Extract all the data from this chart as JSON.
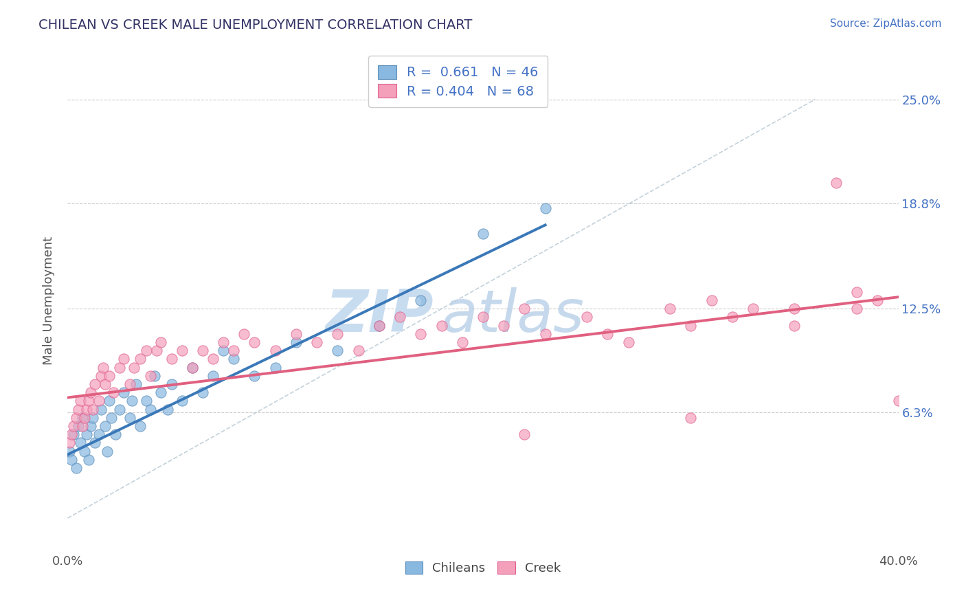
{
  "title": "CHILEAN VS CREEK MALE UNEMPLOYMENT CORRELATION CHART",
  "source_text": "Source: ZipAtlas.com",
  "ylabel": "Male Unemployment",
  "xlim": [
    0.0,
    0.4
  ],
  "ylim": [
    -0.02,
    0.28
  ],
  "yticks": [
    0.063,
    0.125,
    0.188,
    0.25
  ],
  "ytick_labels": [
    "6.3%",
    "12.5%",
    "18.8%",
    "25.0%"
  ],
  "xticks": [
    0.0,
    0.4
  ],
  "xtick_labels": [
    "0.0%",
    "40.0%"
  ],
  "blue_color": "#89B8E0",
  "pink_color": "#F4A0BB",
  "blue_edge_color": "#5B8DB8",
  "pink_edge_color": "#E06090",
  "blue_scatter": {
    "x": [
      0.001,
      0.002,
      0.003,
      0.004,
      0.005,
      0.006,
      0.007,
      0.008,
      0.009,
      0.01,
      0.011,
      0.012,
      0.013,
      0.015,
      0.016,
      0.018,
      0.019,
      0.02,
      0.021,
      0.023,
      0.025,
      0.027,
      0.03,
      0.031,
      0.033,
      0.035,
      0.038,
      0.04,
      0.042,
      0.045,
      0.048,
      0.05,
      0.055,
      0.06,
      0.065,
      0.07,
      0.075,
      0.08,
      0.09,
      0.1,
      0.11,
      0.13,
      0.15,
      0.17,
      0.2,
      0.23
    ],
    "y": [
      0.04,
      0.035,
      0.05,
      0.03,
      0.055,
      0.045,
      0.06,
      0.04,
      0.05,
      0.035,
      0.055,
      0.06,
      0.045,
      0.05,
      0.065,
      0.055,
      0.04,
      0.07,
      0.06,
      0.05,
      0.065,
      0.075,
      0.06,
      0.07,
      0.08,
      0.055,
      0.07,
      0.065,
      0.085,
      0.075,
      0.065,
      0.08,
      0.07,
      0.09,
      0.075,
      0.085,
      0.1,
      0.095,
      0.085,
      0.09,
      0.105,
      0.1,
      0.115,
      0.13,
      0.17,
      0.185
    ]
  },
  "pink_scatter": {
    "x": [
      0.001,
      0.002,
      0.003,
      0.004,
      0.005,
      0.006,
      0.007,
      0.008,
      0.009,
      0.01,
      0.011,
      0.012,
      0.013,
      0.015,
      0.016,
      0.017,
      0.018,
      0.02,
      0.022,
      0.025,
      0.027,
      0.03,
      0.032,
      0.035,
      0.038,
      0.04,
      0.043,
      0.045,
      0.05,
      0.055,
      0.06,
      0.065,
      0.07,
      0.075,
      0.08,
      0.085,
      0.09,
      0.1,
      0.11,
      0.12,
      0.13,
      0.14,
      0.15,
      0.16,
      0.17,
      0.18,
      0.19,
      0.2,
      0.21,
      0.22,
      0.23,
      0.25,
      0.27,
      0.29,
      0.3,
      0.31,
      0.32,
      0.33,
      0.35,
      0.37,
      0.38,
      0.39,
      0.4,
      0.35,
      0.3,
      0.26,
      0.22,
      0.38
    ],
    "y": [
      0.045,
      0.05,
      0.055,
      0.06,
      0.065,
      0.07,
      0.055,
      0.06,
      0.065,
      0.07,
      0.075,
      0.065,
      0.08,
      0.07,
      0.085,
      0.09,
      0.08,
      0.085,
      0.075,
      0.09,
      0.095,
      0.08,
      0.09,
      0.095,
      0.1,
      0.085,
      0.1,
      0.105,
      0.095,
      0.1,
      0.09,
      0.1,
      0.095,
      0.105,
      0.1,
      0.11,
      0.105,
      0.1,
      0.11,
      0.105,
      0.11,
      0.1,
      0.115,
      0.12,
      0.11,
      0.115,
      0.105,
      0.12,
      0.115,
      0.125,
      0.11,
      0.12,
      0.105,
      0.125,
      0.115,
      0.13,
      0.12,
      0.125,
      0.115,
      0.2,
      0.125,
      0.13,
      0.07,
      0.125,
      0.06,
      0.11,
      0.05,
      0.135
    ]
  },
  "blue_line": {
    "x0": 0.0,
    "x1": 0.23,
    "y0": 0.038,
    "y1": 0.175
  },
  "pink_line": {
    "x0": 0.0,
    "x1": 0.4,
    "y0": 0.072,
    "y1": 0.132
  },
  "diag_line": {
    "x0": 0.0,
    "x1": 0.36,
    "y0": 0.0,
    "y1": 0.25
  },
  "legend_R1": "0.661",
  "legend_N1": "46",
  "legend_R2": "0.404",
  "legend_N2": "68",
  "watermark_zip": "ZIP",
  "watermark_atlas": "atlas",
  "watermark_color_zip": "#C8DCF0",
  "watermark_color_atlas": "#B8D0E8",
  "grid_color": "#CCCCCC",
  "background_color": "#FFFFFF",
  "title_color": "#333366",
  "source_color": "#4472C4",
  "ytick_color": "#4472C4"
}
